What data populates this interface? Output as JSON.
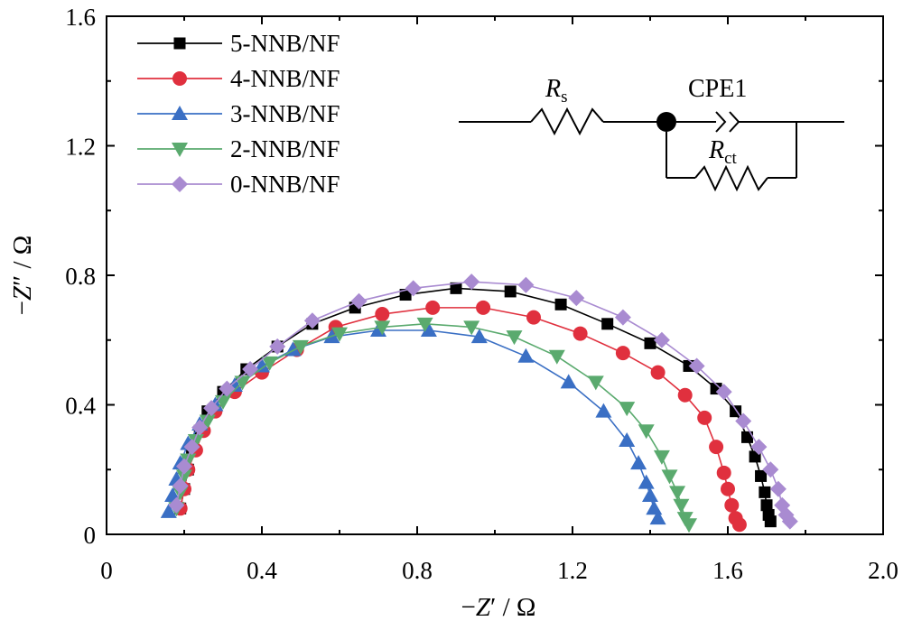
{
  "chart_data": {
    "type": "scatter",
    "xlabel_parts": [
      "−",
      "Z",
      "′ / Ω"
    ],
    "ylabel_parts": [
      "−",
      "Z",
      "″ / Ω"
    ],
    "xlim": [
      0,
      2.0
    ],
    "ylim": [
      0,
      1.6
    ],
    "xticks": [
      "0",
      "0.4",
      "0.8",
      "1.2",
      "1.6",
      "2.0"
    ],
    "yticks": [
      "0",
      "0.4",
      "0.8",
      "1.2",
      "1.6"
    ],
    "legend_position": "top-left",
    "grid": false,
    "series": [
      {
        "name": "5-NNB/NF",
        "color": "#000000",
        "marker": "square",
        "x": [
          0.19,
          0.2,
          0.21,
          0.22,
          0.24,
          0.26,
          0.3,
          0.36,
          0.44,
          0.53,
          0.64,
          0.77,
          0.9,
          1.04,
          1.17,
          1.29,
          1.4,
          1.5,
          1.57,
          1.62,
          1.65,
          1.67,
          1.685,
          1.695,
          1.7,
          1.705,
          1.71
        ],
        "y": [
          0.08,
          0.14,
          0.2,
          0.26,
          0.32,
          0.38,
          0.44,
          0.51,
          0.58,
          0.65,
          0.7,
          0.74,
          0.76,
          0.75,
          0.71,
          0.65,
          0.59,
          0.52,
          0.45,
          0.38,
          0.3,
          0.24,
          0.18,
          0.13,
          0.09,
          0.06,
          0.04
        ]
      },
      {
        "name": "4-NNB/NF",
        "color": "#e0303e",
        "marker": "circle",
        "x": [
          0.19,
          0.2,
          0.21,
          0.23,
          0.25,
          0.28,
          0.33,
          0.4,
          0.49,
          0.59,
          0.71,
          0.84,
          0.97,
          1.1,
          1.22,
          1.33,
          1.42,
          1.49,
          1.54,
          1.57,
          1.59,
          1.6,
          1.61,
          1.62,
          1.63
        ],
        "y": [
          0.08,
          0.14,
          0.2,
          0.26,
          0.32,
          0.38,
          0.44,
          0.5,
          0.57,
          0.64,
          0.68,
          0.7,
          0.7,
          0.67,
          0.62,
          0.56,
          0.5,
          0.43,
          0.36,
          0.27,
          0.19,
          0.14,
          0.09,
          0.05,
          0.03
        ]
      },
      {
        "name": "3-NNB/NF",
        "color": "#3a6fc4",
        "marker": "triangle-up",
        "x": [
          0.16,
          0.17,
          0.18,
          0.19,
          0.21,
          0.24,
          0.28,
          0.33,
          0.4,
          0.48,
          0.58,
          0.7,
          0.83,
          0.96,
          1.08,
          1.19,
          1.28,
          1.34,
          1.37,
          1.39,
          1.4,
          1.41,
          1.42
        ],
        "y": [
          0.07,
          0.12,
          0.17,
          0.22,
          0.28,
          0.34,
          0.4,
          0.46,
          0.52,
          0.57,
          0.61,
          0.63,
          0.63,
          0.61,
          0.55,
          0.47,
          0.38,
          0.29,
          0.22,
          0.16,
          0.12,
          0.08,
          0.05
        ]
      },
      {
        "name": "2-NNB/NF",
        "color": "#5aaa6e",
        "marker": "triangle-down",
        "x": [
          0.18,
          0.19,
          0.2,
          0.21,
          0.23,
          0.26,
          0.3,
          0.35,
          0.42,
          0.5,
          0.6,
          0.71,
          0.82,
          0.94,
          1.05,
          1.16,
          1.26,
          1.34,
          1.39,
          1.43,
          1.45,
          1.47,
          1.48,
          1.49,
          1.5
        ],
        "y": [
          0.08,
          0.13,
          0.18,
          0.23,
          0.29,
          0.35,
          0.41,
          0.47,
          0.53,
          0.58,
          0.62,
          0.64,
          0.65,
          0.64,
          0.61,
          0.55,
          0.47,
          0.39,
          0.32,
          0.24,
          0.18,
          0.13,
          0.09,
          0.05,
          0.03
        ]
      },
      {
        "name": "0-NNB/NF",
        "color": "#a98bd1",
        "marker": "diamond",
        "x": [
          0.18,
          0.19,
          0.2,
          0.22,
          0.24,
          0.27,
          0.31,
          0.37,
          0.44,
          0.53,
          0.65,
          0.79,
          0.94,
          1.08,
          1.21,
          1.33,
          1.43,
          1.52,
          1.59,
          1.64,
          1.68,
          1.71,
          1.73,
          1.74,
          1.75,
          1.76
        ],
        "y": [
          0.09,
          0.15,
          0.21,
          0.27,
          0.33,
          0.39,
          0.45,
          0.51,
          0.58,
          0.66,
          0.72,
          0.76,
          0.78,
          0.77,
          0.73,
          0.67,
          0.6,
          0.52,
          0.44,
          0.35,
          0.27,
          0.2,
          0.14,
          0.09,
          0.06,
          0.04
        ]
      }
    ]
  },
  "circuit": {
    "rs_label_main": "R",
    "rs_label_sub": "s",
    "cpe_label": "CPE1",
    "rct_label_main": "R",
    "rct_label_sub": "ct"
  }
}
